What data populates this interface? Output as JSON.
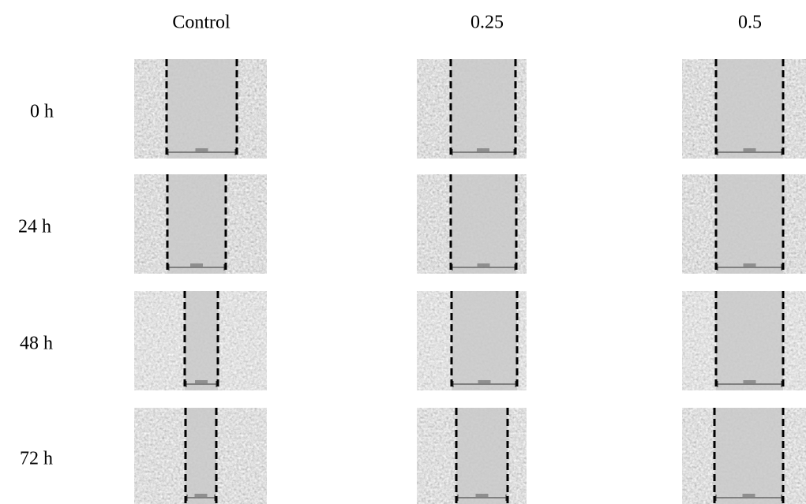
{
  "columns": [
    "Control",
    "0.25",
    "0.5"
  ],
  "rows": [
    "0 h",
    "24 h",
    "48 h",
    "72 h"
  ]
}
